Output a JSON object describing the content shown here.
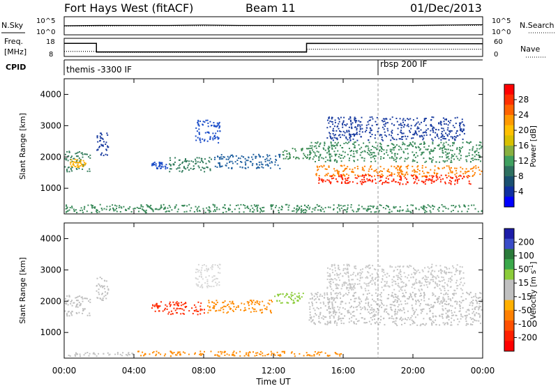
{
  "header": {
    "station": "Fort Hays West (fitACF)",
    "beam": "Beam 11",
    "date": "01/Dec/2013"
  },
  "colors": {
    "trace": "#000000",
    "velocity_neutral": "#c0c0c0",
    "dashed_marker": "#9a9a9a"
  },
  "chart_data": [
    {
      "type": "line",
      "panel": "noise",
      "left_label": "N.Sky",
      "right_label": "N.Search",
      "left_ticks": [
        "10^5",
        "10^0"
      ],
      "right_ticks": [
        "10^5",
        "10^0"
      ],
      "x": [
        0,
        2,
        4,
        6,
        8,
        10,
        12,
        14,
        16,
        18,
        20,
        22,
        24
      ],
      "sky_values": [
        2.5,
        2.6,
        2.6,
        2.6,
        2.7,
        2.6,
        2.6,
        2.6,
        2.6,
        2.6,
        2.6,
        2.7,
        2.8
      ],
      "search_values": [
        2.4,
        2.4,
        2.5,
        2.5,
        2.5,
        2.5,
        2.5,
        2.5,
        2.5,
        2.5,
        2.5,
        2.6,
        2.6
      ]
    },
    {
      "type": "line",
      "panel": "frequency",
      "left_label_top": "Freq.",
      "left_label_bottom": "[MHz]",
      "right_label": "Nave",
      "left_ticks": [
        "18",
        "8"
      ],
      "right_ticks": [
        "60",
        "0"
      ],
      "ylim": [
        8,
        18
      ],
      "freq_x": [
        0,
        1.85,
        1.85,
        13.9,
        13.9,
        24
      ],
      "freq_values": [
        15.2,
        15.2,
        10.5,
        10.5,
        15.2,
        15.0
      ],
      "nave_x": [
        0,
        1.85,
        1.85,
        13.9,
        13.9,
        24
      ],
      "nave_values": [
        10.8,
        10.8,
        10.2,
        10.2,
        12.0,
        12.0
      ]
    },
    {
      "type": "table",
      "panel": "cpid",
      "label": "CPID",
      "segments": [
        {
          "start": 0,
          "end": 18,
          "text": "themis -3300 IF"
        },
        {
          "start": 18,
          "end": 24,
          "text": "rbsp 200 IF"
        }
      ]
    },
    {
      "type": "heatmap",
      "panel": "power",
      "ylabel": "Slant Range [km]",
      "yticks": [
        1000,
        2000,
        3000,
        4000
      ],
      "ylim": [
        180,
        4500
      ],
      "xlim": [
        0,
        24
      ],
      "colorbar_label": "Power [dB]",
      "colorbar_ticks": [
        "28",
        "24",
        "20",
        "16",
        "12",
        "8",
        "4"
      ],
      "colorbar_colors": [
        "#ff0000",
        "#ff3000",
        "#ff6400",
        "#ff9a00",
        "#ffc000",
        "#d8c000",
        "#88b040",
        "#40a060",
        "#2e7060",
        "#1a5070",
        "#1030a0",
        "#0000ff"
      ],
      "bands": [
        {
          "t0": 0.0,
          "t1": 1.6,
          "r0": 1500,
          "r1": 2200,
          "color": "#3a8060"
        },
        {
          "t0": 0.3,
          "t1": 1.3,
          "r0": 1650,
          "r1": 1950,
          "color": "#ffb000"
        },
        {
          "t0": 1.8,
          "t1": 2.6,
          "r0": 2000,
          "r1": 2800,
          "color": "#1a3ca0"
        },
        {
          "t0": 5.0,
          "t1": 6.0,
          "r0": 1600,
          "r1": 1850,
          "color": "#1a4cc8"
        },
        {
          "t0": 6.0,
          "t1": 8.5,
          "r0": 1500,
          "r1": 2000,
          "color": "#2e7a5a"
        },
        {
          "t0": 8.5,
          "t1": 12.5,
          "r0": 1600,
          "r1": 2100,
          "color": "#2060a0"
        },
        {
          "t0": 12.5,
          "t1": 14.2,
          "r0": 1900,
          "r1": 2300,
          "color": "#3a8a50"
        },
        {
          "t0": 7.5,
          "t1": 9.0,
          "r0": 2400,
          "r1": 3200,
          "color": "#1a4cc8"
        },
        {
          "t0": 14.0,
          "t1": 24.0,
          "r0": 1800,
          "r1": 2500,
          "color": "#3a8a5a"
        },
        {
          "t0": 14.3,
          "t1": 24.0,
          "r0": 1350,
          "r1": 1750,
          "color": "#ff8000"
        },
        {
          "t0": 14.5,
          "t1": 23.5,
          "r0": 1100,
          "r1": 1450,
          "color": "#ff2000"
        },
        {
          "t0": 15.0,
          "t1": 23.0,
          "r0": 2500,
          "r1": 3300,
          "color": "#1a3ca0"
        },
        {
          "t0": 0.0,
          "t1": 24.0,
          "r0": 200,
          "r1": 500,
          "color": "#3a8a5a"
        }
      ]
    },
    {
      "type": "heatmap",
      "panel": "velocity",
      "ylabel": "Slant Range [km]",
      "yticks": [
        1000,
        2000,
        3000,
        4000
      ],
      "ylim": [
        180,
        4500
      ],
      "xlim": [
        0,
        24
      ],
      "xlabel": "Time UT",
      "xticks": [
        "00:00",
        "04:00",
        "08:00",
        "12:00",
        "16:00",
        "20:00",
        "00:00"
      ],
      "colorbar_label": "Velocity [m s^-1]",
      "colorbar_ticks": [
        "200",
        "100",
        "50",
        "15",
        "-15",
        "-50",
        "-100",
        "-200"
      ],
      "colorbar_colors": [
        "#1c1ca8",
        "#3a4cc8",
        "#2a7a3a",
        "#3aa84a",
        "#8ccc3a",
        "#c0c0c0",
        "#c0c0c0",
        "#ffb000",
        "#ff8000",
        "#ff5000",
        "#ff2000",
        "#ff0000"
      ],
      "bands": [
        {
          "t0": 0.0,
          "t1": 1.6,
          "r0": 1500,
          "r1": 2200,
          "color": "#c0c0c0"
        },
        {
          "t0": 1.8,
          "t1": 2.6,
          "r0": 2000,
          "r1": 2800,
          "color": "#c0c0c0"
        },
        {
          "t0": 5.0,
          "t1": 8.2,
          "r0": 1550,
          "r1": 2000,
          "color": "#ff2a00"
        },
        {
          "t0": 8.2,
          "t1": 12.0,
          "r0": 1600,
          "r1": 2050,
          "color": "#ff8a00"
        },
        {
          "t0": 12.0,
          "t1": 13.8,
          "r0": 1900,
          "r1": 2300,
          "color": "#8ccc3a"
        },
        {
          "t0": 7.5,
          "t1": 9.0,
          "r0": 2400,
          "r1": 3200,
          "color": "#d8d8d8"
        },
        {
          "t0": 14.0,
          "t1": 24.0,
          "r0": 1200,
          "r1": 2300,
          "color": "#c0c0c0"
        },
        {
          "t0": 15.0,
          "t1": 23.0,
          "r0": 2300,
          "r1": 3200,
          "color": "#c8c8c8"
        },
        {
          "t0": 4.0,
          "t1": 16.0,
          "r0": 220,
          "r1": 420,
          "color": "#ff8a00"
        },
        {
          "t0": 0.0,
          "t1": 4.0,
          "r0": 220,
          "r1": 380,
          "color": "#c0c0c0"
        }
      ]
    }
  ]
}
